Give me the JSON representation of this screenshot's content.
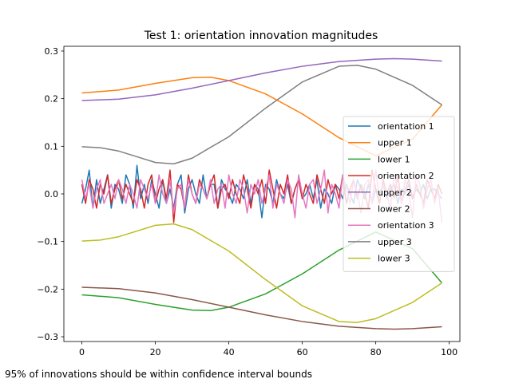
{
  "caption": "95% of innovations should be within confidence interval bounds",
  "chart_data": {
    "type": "line",
    "title": "Test 1: orientation innovation magnitudes",
    "xlabel": "",
    "ylabel": "",
    "xlim": [
      -4.9,
      102.9
    ],
    "ylim": [
      -0.31,
      0.31
    ],
    "xticks": [
      0,
      20,
      40,
      60,
      80,
      100
    ],
    "yticks": [
      -0.3,
      -0.2,
      -0.1,
      0.0,
      0.1,
      0.2,
      0.3
    ],
    "xtick_labels": [
      "0",
      "20",
      "40",
      "60",
      "80",
      "100"
    ],
    "ytick_labels": [
      "−0.3",
      "−0.2",
      "−0.1",
      "0.0",
      "0.1",
      "0.2",
      "0.3"
    ],
    "grid": false,
    "legend_position": "center-right",
    "series": [
      {
        "name": "orientation 1",
        "color": "#1f77b4",
        "x_start": 0,
        "x_step": 1,
        "y": [
          -0.02,
          0.01,
          0.05,
          -0.03,
          0.03,
          -0.02,
          0.01,
          0.04,
          -0.03,
          0.02,
          0.01,
          -0.02,
          0.04,
          0.02,
          -0.03,
          0.06,
          -0.01,
          0.02,
          -0.02,
          0.03,
          0.0,
          -0.03,
          0.03,
          -0.02,
          0.01,
          -0.03,
          0.02,
          0.04,
          -0.04,
          0.01,
          0.03,
          0.0,
          -0.02,
          0.04,
          -0.01,
          0.02,
          0.02,
          -0.03,
          0.03,
          0.01,
          0.0,
          -0.02,
          0.02,
          0.01,
          -0.01,
          0.03,
          -0.02,
          0.02,
          0.01,
          -0.05,
          0.02,
          0.01,
          -0.02,
          0.03,
          0.0,
          -0.01,
          0.02,
          -0.02,
          0.01,
          0.03,
          -0.01,
          0.0,
          0.02,
          -0.01,
          0.03,
          -0.03,
          0.01,
          0.0,
          -0.02,
          0.02,
          0.01,
          -0.01,
          0.02,
          0.0,
          -0.02,
          0.03,
          0.01,
          -0.01,
          0.02,
          -0.02,
          0.01,
          0.0,
          0.02,
          -0.01,
          0.01,
          0.02,
          -0.02,
          0.01,
          0.0,
          0.02,
          -0.01,
          0.01,
          0.0,
          0.02,
          -0.01,
          0.01,
          0.01,
          0.0,
          -0.01
        ]
      },
      {
        "name": "upper 1",
        "color": "#ff7f0e",
        "x": [
          0,
          10,
          20,
          30,
          35,
          40,
          50,
          60,
          70,
          80,
          90,
          98
        ],
        "y": [
          0.212,
          0.218,
          0.232,
          0.244,
          0.245,
          0.238,
          0.21,
          0.168,
          0.118,
          0.08,
          0.115,
          0.187
        ]
      },
      {
        "name": "lower 1",
        "color": "#2ca02c",
        "x": [
          0,
          10,
          20,
          30,
          35,
          40,
          50,
          60,
          70,
          80,
          90,
          98
        ],
        "y": [
          -0.212,
          -0.218,
          -0.232,
          -0.244,
          -0.245,
          -0.238,
          -0.21,
          -0.168,
          -0.118,
          -0.08,
          -0.115,
          -0.187
        ]
      },
      {
        "name": "orientation 2",
        "color": "#d62728",
        "x_start": 0,
        "x_step": 1,
        "y": [
          0.02,
          -0.02,
          0.03,
          0.01,
          -0.03,
          0.02,
          0.0,
          0.04,
          -0.02,
          0.01,
          0.03,
          -0.01,
          0.02,
          0.0,
          -0.02,
          0.03,
          0.01,
          -0.03,
          0.02,
          0.04,
          -0.02,
          0.01,
          0.03,
          -0.01,
          0.05,
          -0.06,
          0.02,
          0.01,
          -0.03,
          0.04,
          0.0,
          -0.02,
          0.03,
          0.01,
          -0.01,
          0.02,
          0.04,
          -0.03,
          0.01,
          0.02,
          -0.01,
          0.03,
          0.0,
          -0.02,
          0.04,
          0.01,
          -0.03,
          0.02,
          0.0,
          0.03,
          -0.02,
          0.05,
          0.01,
          -0.03,
          0.02,
          0.0,
          0.04,
          -0.02,
          0.01,
          0.03,
          -0.01,
          0.02,
          0.0,
          -0.02,
          0.04,
          0.01,
          -0.02,
          0.03,
          0.0,
          0.02,
          -0.01,
          0.04,
          -0.02,
          0.01,
          0.03,
          -0.01,
          0.02,
          0.0,
          -0.03,
          0.05,
          0.01,
          -0.02,
          0.03,
          0.0,
          0.02,
          -0.01,
          0.04,
          -0.02,
          0.01,
          0.03,
          -0.01,
          0.02,
          0.0,
          -0.02,
          0.03,
          0.01,
          -0.01,
          0.02,
          0.0
        ]
      },
      {
        "name": "upper 2",
        "color": "#9467bd",
        "x": [
          0,
          10,
          20,
          30,
          40,
          50,
          60,
          70,
          80,
          85,
          90,
          98
        ],
        "y": [
          0.196,
          0.199,
          0.208,
          0.222,
          0.238,
          0.254,
          0.268,
          0.278,
          0.283,
          0.284,
          0.283,
          0.279
        ]
      },
      {
        "name": "lower 2",
        "color": "#8c564b",
        "x": [
          0,
          10,
          20,
          30,
          40,
          50,
          60,
          70,
          80,
          85,
          90,
          98
        ],
        "y": [
          -0.196,
          -0.199,
          -0.208,
          -0.222,
          -0.238,
          -0.254,
          -0.268,
          -0.278,
          -0.283,
          -0.284,
          -0.283,
          -0.279
        ]
      },
      {
        "name": "orientation 3",
        "color": "#e377c2",
        "x_start": 0,
        "x_step": 1,
        "y": [
          0.03,
          -0.01,
          0.02,
          -0.03,
          0.01,
          0.03,
          -0.02,
          0.0,
          0.02,
          -0.01,
          0.03,
          0.01,
          -0.02,
          0.02,
          0.0,
          -0.03,
          0.03,
          0.01,
          -0.01,
          0.02,
          -0.02,
          0.04,
          0.0,
          -0.02,
          0.03,
          -0.04,
          0.01,
          0.02,
          -0.03,
          0.03,
          0.0,
          -0.02,
          0.02,
          0.01,
          -0.01,
          0.03,
          -0.02,
          0.01,
          0.02,
          -0.03,
          0.04,
          0.0,
          -0.02,
          0.03,
          0.01,
          -0.04,
          0.02,
          0.0,
          0.03,
          -0.02,
          0.01,
          0.04,
          -0.03,
          0.02,
          0.0,
          -0.02,
          0.03,
          0.01,
          -0.05,
          0.04,
          0.0,
          -0.03,
          0.02,
          0.03,
          -0.02,
          0.01,
          0.05,
          -0.04,
          0.02,
          0.0,
          -0.03,
          0.04,
          0.01,
          -0.02,
          0.03,
          0.0,
          -0.04,
          0.02,
          0.03,
          -0.02,
          0.05,
          -0.01,
          0.02,
          0.0,
          -0.03,
          0.04,
          0.01,
          -0.02,
          0.03,
          0.0,
          -0.05,
          0.04,
          0.02,
          -0.03,
          0.01,
          0.03,
          -0.02,
          0.01,
          -0.06
        ]
      },
      {
        "name": "upper 3",
        "color": "#7f7f7f",
        "x": [
          0,
          5,
          10,
          15,
          20,
          25,
          30,
          40,
          50,
          60,
          70,
          75,
          80,
          90,
          98
        ],
        "y": [
          0.099,
          0.097,
          0.09,
          0.078,
          0.066,
          0.063,
          0.075,
          0.12,
          0.18,
          0.235,
          0.268,
          0.27,
          0.262,
          0.228,
          0.187
        ]
      },
      {
        "name": "lower 3",
        "color": "#bcbd22",
        "x": [
          0,
          5,
          10,
          15,
          20,
          25,
          30,
          40,
          50,
          60,
          70,
          75,
          80,
          90,
          98
        ],
        "y": [
          -0.099,
          -0.097,
          -0.09,
          -0.078,
          -0.066,
          -0.063,
          -0.075,
          -0.12,
          -0.18,
          -0.235,
          -0.268,
          -0.27,
          -0.262,
          -0.228,
          -0.187
        ]
      }
    ]
  }
}
